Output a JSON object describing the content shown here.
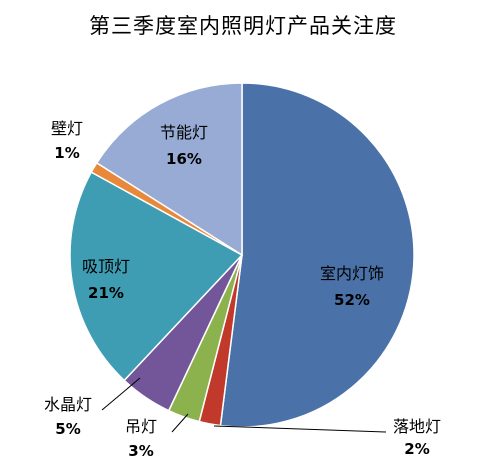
{
  "chart_data": {
    "type": "pie",
    "title": "第三季度室内照明灯产品关注度",
    "categories": [
      "室内灯饰",
      "落地灯",
      "吊灯",
      "水晶灯",
      "吸顶灯",
      "壁灯",
      "节能灯"
    ],
    "values": [
      52,
      2,
      3,
      5,
      21,
      1,
      16
    ],
    "value_labels": [
      "52%",
      "2%",
      "3%",
      "5%",
      "21%",
      "1%",
      "16%"
    ],
    "colors": [
      "#4A72A8",
      "#C0392B",
      "#8CB24E",
      "#73559A",
      "#3F9DB3",
      "#E8883A",
      "#97ABD4"
    ],
    "start_angle": "12 o'clock",
    "direction": "clockwise",
    "legend": "none"
  }
}
